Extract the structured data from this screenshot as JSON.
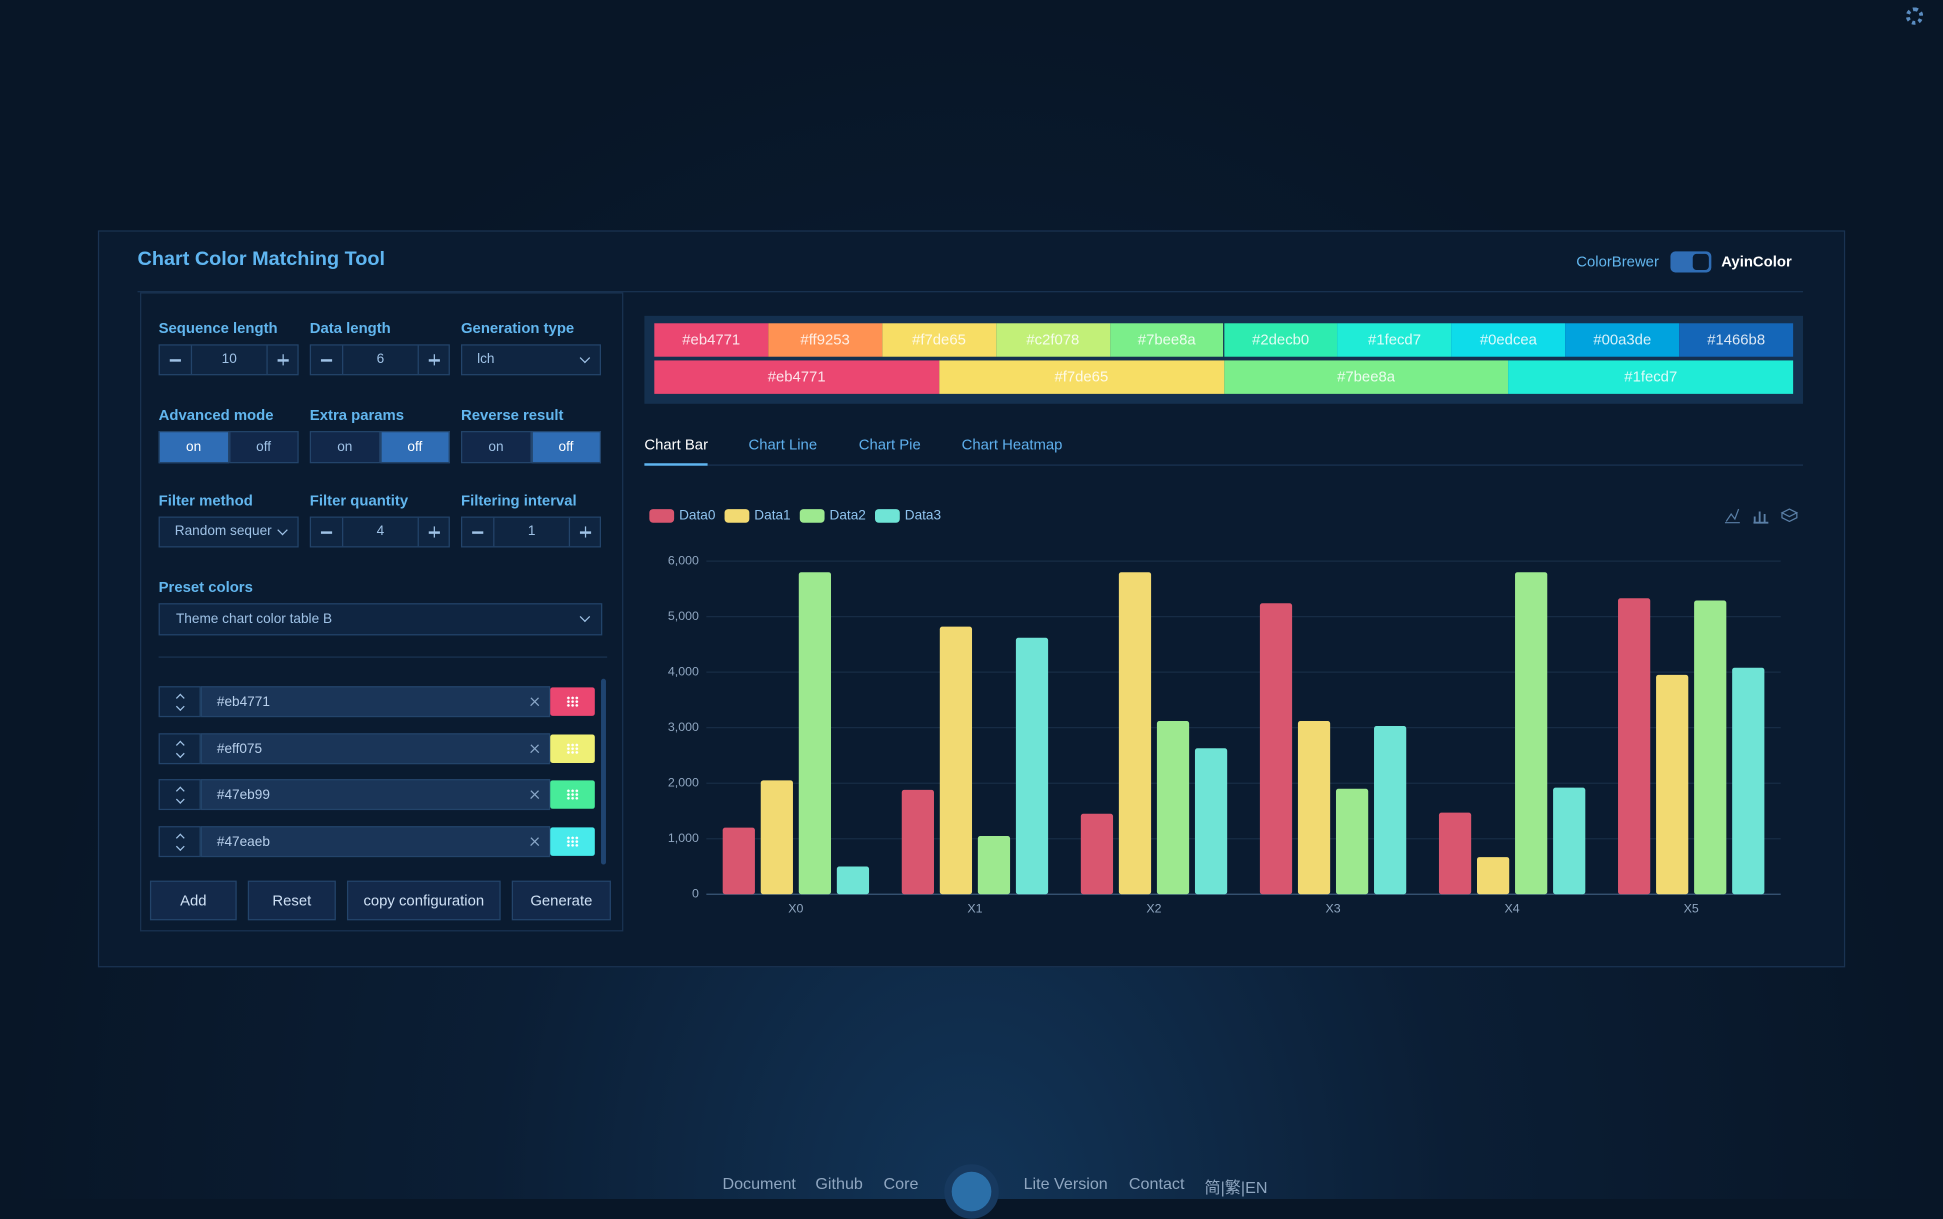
{
  "header": {
    "title": "Chart Color Matching Tool",
    "toggle_left": "ColorBrewer",
    "toggle_right": "AyinColor"
  },
  "controls": [
    {
      "label": "Sequence length",
      "kind": "stepper",
      "value": 10
    },
    {
      "label": "Data length",
      "kind": "stepper",
      "value": 6
    },
    {
      "label": "Generation type",
      "kind": "select",
      "value": "lch"
    },
    {
      "label": "Advanced mode",
      "kind": "switch",
      "options": [
        "on",
        "off"
      ],
      "active": 0
    },
    {
      "label": "Extra params",
      "kind": "switch",
      "options": [
        "on",
        "off"
      ],
      "active": 1
    },
    {
      "label": "Reverse result",
      "kind": "switch",
      "options": [
        "on",
        "off"
      ],
      "active": 1
    },
    {
      "label": "Filter method",
      "kind": "select",
      "value": "Random sequer"
    },
    {
      "label": "Filter quantity",
      "kind": "stepper",
      "value": 4
    },
    {
      "label": "Filtering interval",
      "kind": "stepper",
      "value": 1
    }
  ],
  "preset": {
    "label": "Preset colors",
    "value": "Theme chart color table B"
  },
  "color_list": [
    "#eb4771",
    "#eff075",
    "#47eb99",
    "#47eaeb"
  ],
  "buttons": [
    "Add",
    "Reset",
    "copy configuration",
    "Generate"
  ],
  "palette_rows": [
    [
      "#eb4771",
      "#ff9253",
      "#f7de65",
      "#c2f078",
      "#7bee8a",
      "#2decb0",
      "#1fecd7",
      "#0edcea",
      "#00a3de",
      "#1466b8"
    ],
    [
      "#eb4771",
      "#f7de65",
      "#7bee8a",
      "#1fecd7"
    ]
  ],
  "tabs": {
    "items": [
      "Chart Bar",
      "Chart Line",
      "Chart Pie",
      "Chart Heatmap"
    ],
    "active": 0
  },
  "chart_data": {
    "type": "bar",
    "categories": [
      "X0",
      "X1",
      "X2",
      "X3",
      "X4",
      "X5"
    ],
    "series": [
      {
        "name": "Data0",
        "color": "#d9566f",
        "values": [
          1200,
          1880,
          1450,
          5240,
          1470,
          5330
        ]
      },
      {
        "name": "Data1",
        "color": "#f2da72",
        "values": [
          2050,
          4820,
          5800,
          3120,
          670,
          3950
        ]
      },
      {
        "name": "Data2",
        "color": "#9de98f",
        "values": [
          5800,
          1050,
          3120,
          1900,
          5800,
          5290
        ]
      },
      {
        "name": "Data3",
        "color": "#6fe4d6",
        "values": [
          500,
          4620,
          2630,
          3030,
          1920,
          4080
        ]
      }
    ],
    "ylim": [
      0,
      6000
    ],
    "yticks": [
      0,
      {
        "value": 1000,
        "label": "1,000"
      },
      {
        "value": 2000,
        "label": "2,000"
      },
      {
        "value": 3000,
        "label": "3,000"
      },
      {
        "value": 4000,
        "label": "4,000"
      },
      {
        "value": 5000,
        "label": "5,000"
      },
      {
        "value": 6000,
        "label": "6,000"
      }
    ],
    "grid": true,
    "legend": "top-left"
  },
  "footer": [
    "Document",
    "Github",
    "Core",
    "Lite Version",
    "Contact",
    "简|繁|EN"
  ]
}
